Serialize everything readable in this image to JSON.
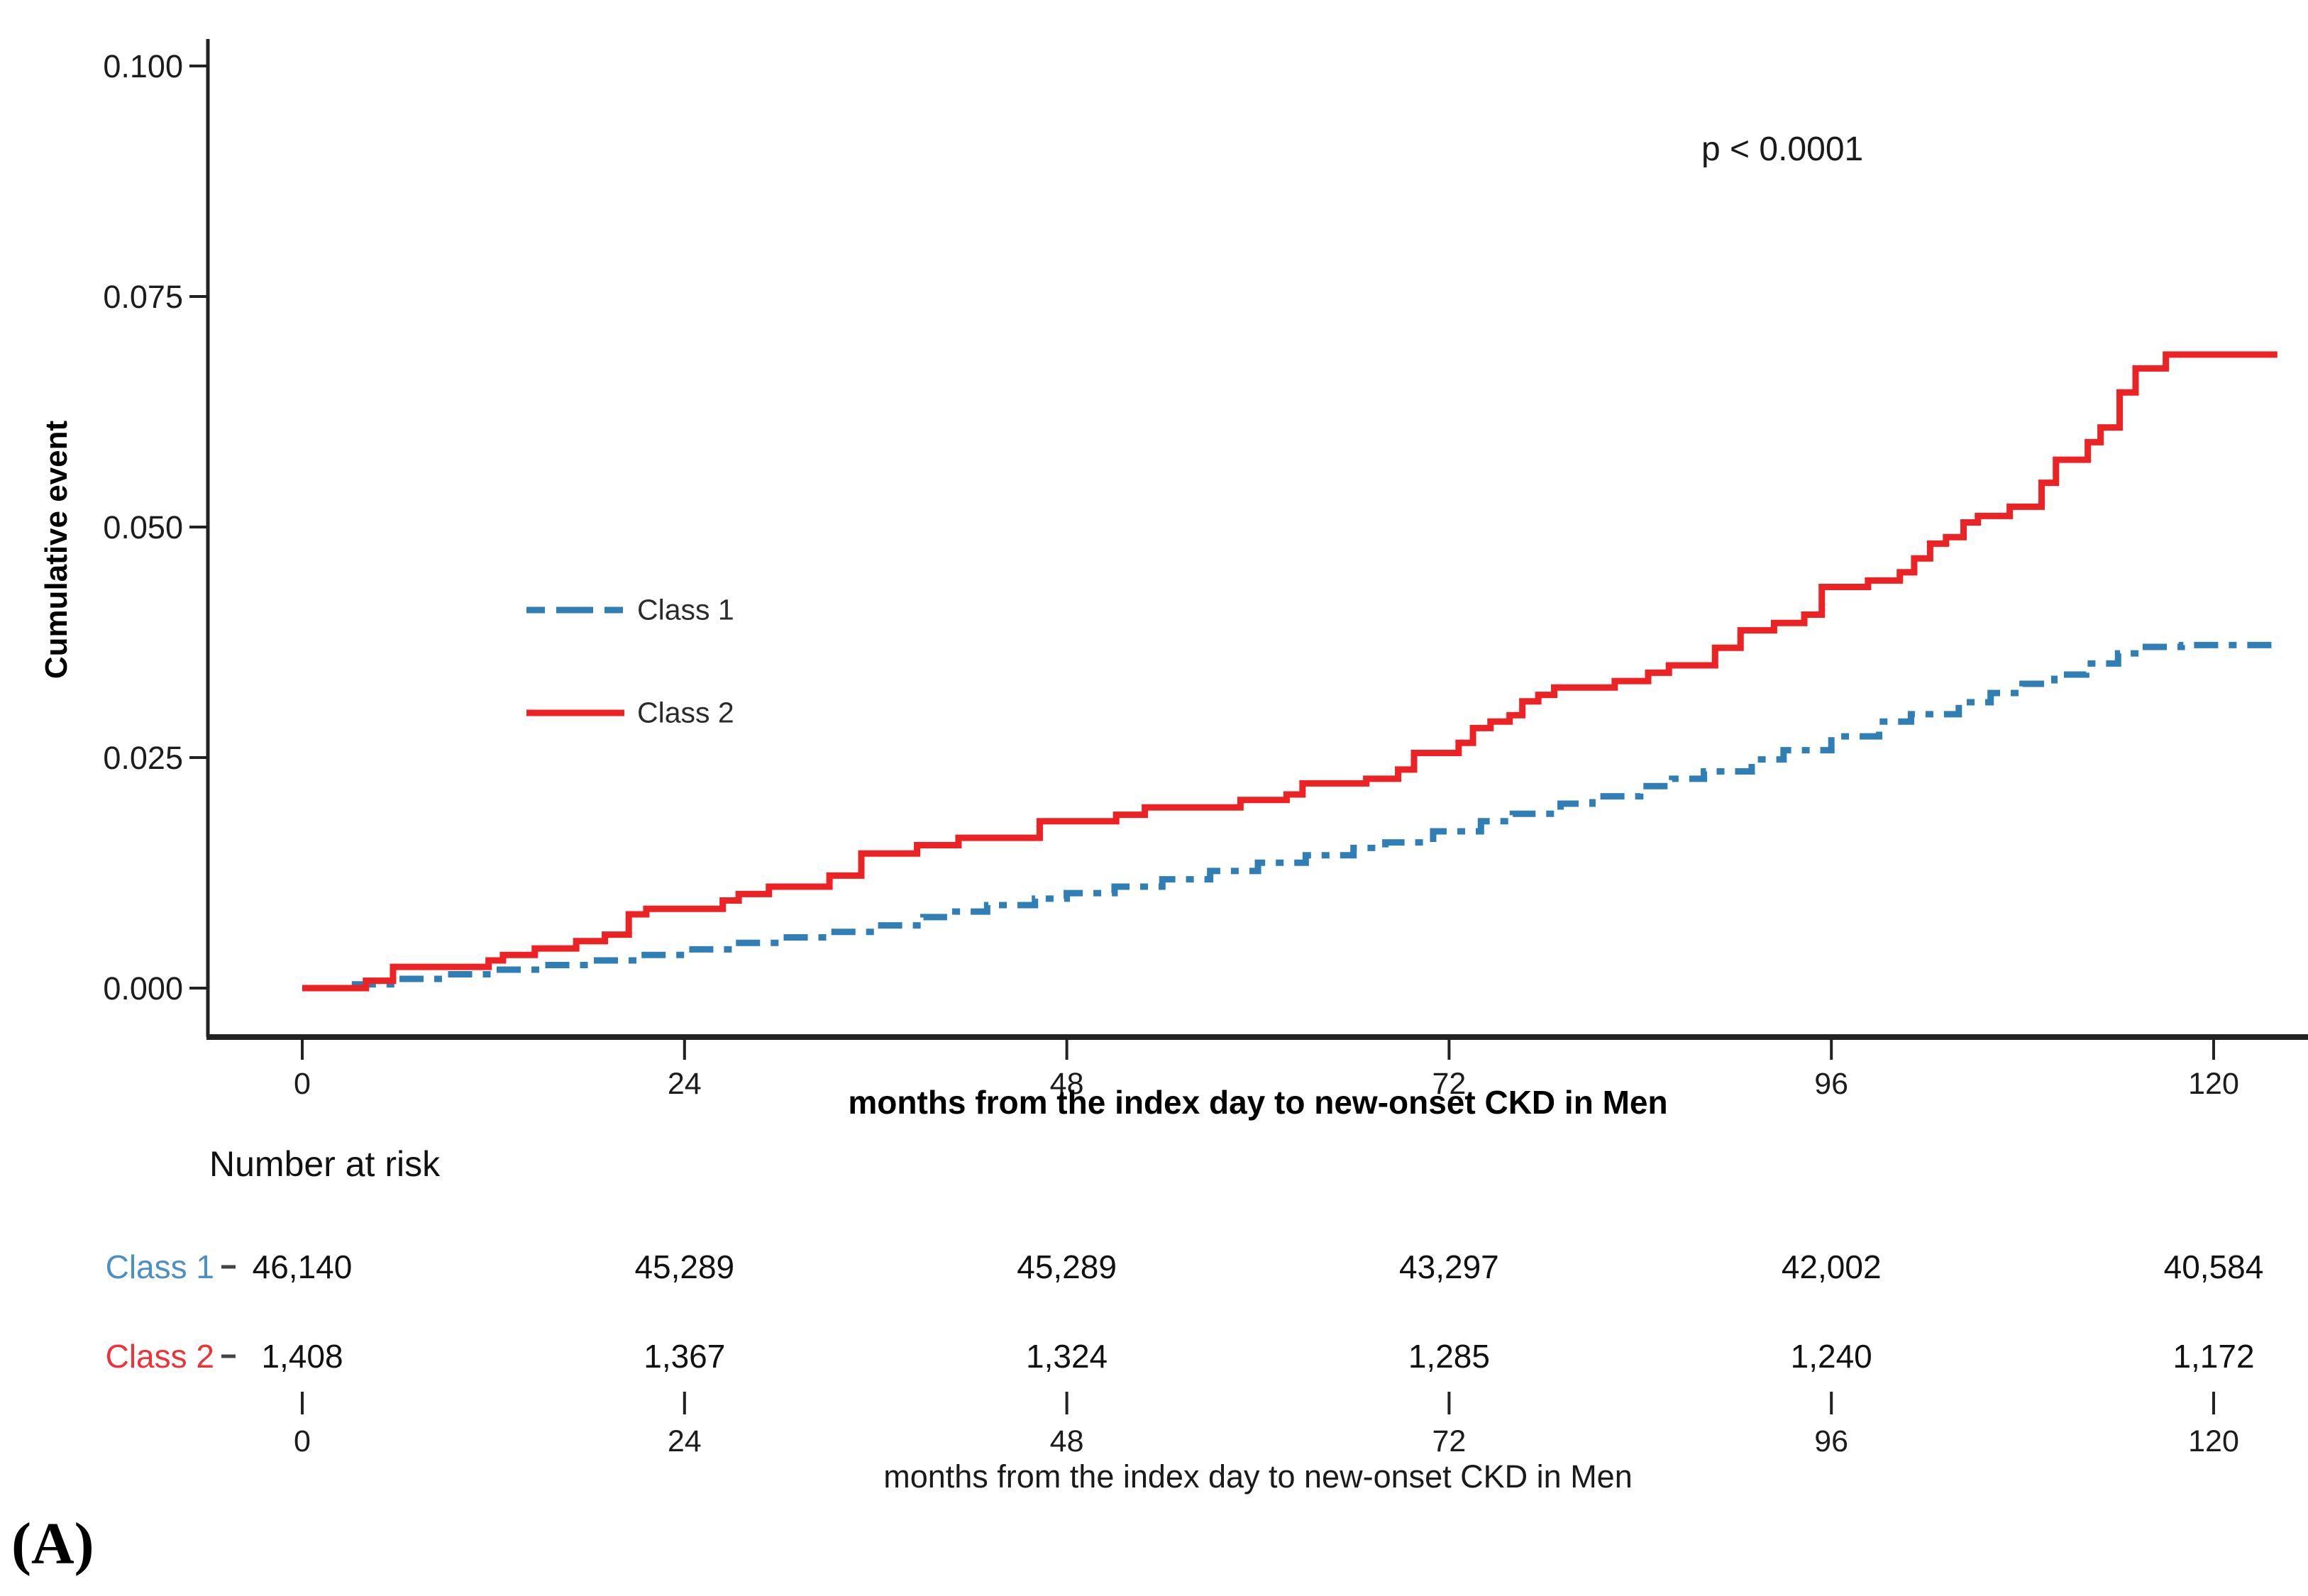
{
  "panel_label": "(A)",
  "p_value": "p < 0.0001",
  "y_axis": {
    "title": "Cumulative event",
    "ticks": [
      "0.000",
      "0.025",
      "0.050",
      "0.075",
      "0.100"
    ],
    "tick_values": [
      0,
      0.025,
      0.05,
      0.075,
      0.1
    ]
  },
  "x_axis": {
    "title": "months from the index day to new-onset CKD in Men",
    "ticks": [
      "0",
      "24",
      "48",
      "72",
      "96",
      "120"
    ],
    "tick_values": [
      0,
      24,
      48,
      72,
      96,
      120
    ]
  },
  "legend": {
    "items": [
      {
        "label": "Class 1",
        "color": "#2F7EB5",
        "style": "dashdot"
      },
      {
        "label": "Class 2",
        "color": "#ED2224",
        "style": "solid"
      }
    ]
  },
  "risk_table": {
    "header": "Number at risk",
    "axis_title": "months from the index day to new-onset CKD in Men",
    "columns": [
      "0",
      "24",
      "48",
      "72",
      "96",
      "120"
    ],
    "column_values": [
      0,
      24,
      48,
      72,
      96,
      120
    ],
    "rows": [
      {
        "label": "Class 1",
        "color": "#4A90C4",
        "values": [
          "46,140",
          "45,289",
          "45,289",
          "43,297",
          "42,002",
          "40,584"
        ]
      },
      {
        "label": "Class 2",
        "color": "#ED3338",
        "values": [
          "1,408",
          "1,367",
          "1,324",
          "1,285",
          "1,240",
          "1,172"
        ]
      }
    ]
  },
  "chart_data": {
    "type": "line",
    "title": "",
    "xlabel": "months from the index day to new-onset CKD in Men",
    "ylabel": "Cumulative event",
    "xlim": [
      -10.5,
      125.5
    ],
    "ylim": [
      0,
      0.105
    ],
    "x_ticks": [
      0,
      24,
      48,
      72,
      96,
      120
    ],
    "y_ticks": [
      0,
      0.025,
      0.05,
      0.075,
      0.1
    ],
    "grid": false,
    "legend_position": "inside-left-middle",
    "annotation": "p < 0.0001",
    "series": [
      {
        "name": "Class 1",
        "color": "#2F7EB5",
        "line_style": "dashdot",
        "step": true,
        "points": [
          [
            0,
            0
          ],
          [
            3,
            0.0004
          ],
          [
            6,
            0.001
          ],
          [
            9,
            0.0015
          ],
          [
            12,
            0.002
          ],
          [
            15,
            0.0025
          ],
          [
            18,
            0.003
          ],
          [
            21,
            0.0036
          ],
          [
            24,
            0.0042
          ],
          [
            27,
            0.0049
          ],
          [
            30,
            0.0055
          ],
          [
            33,
            0.0061
          ],
          [
            36,
            0.0068
          ],
          [
            39,
            0.0077
          ],
          [
            41,
            0.0083
          ],
          [
            43,
            0.009
          ],
          [
            46,
            0.0097
          ],
          [
            48,
            0.0103
          ],
          [
            51,
            0.011
          ],
          [
            54,
            0.0118
          ],
          [
            57,
            0.0127
          ],
          [
            60,
            0.0136
          ],
          [
            63,
            0.0144
          ],
          [
            66,
            0.0152
          ],
          [
            68,
            0.0158
          ],
          [
            71,
            0.017
          ],
          [
            74,
            0.0181
          ],
          [
            76,
            0.0189
          ],
          [
            79,
            0.02
          ],
          [
            81,
            0.0208
          ],
          [
            84,
            0.0219
          ],
          [
            86,
            0.0227
          ],
          [
            88,
            0.0235
          ],
          [
            91,
            0.0248
          ],
          [
            93,
            0.0258
          ],
          [
            96,
            0.0273
          ],
          [
            99,
            0.0289
          ],
          [
            101,
            0.0297
          ],
          [
            104,
            0.031
          ],
          [
            106,
            0.032
          ],
          [
            108,
            0.033
          ],
          [
            110,
            0.034
          ],
          [
            112,
            0.0352
          ],
          [
            114,
            0.0363
          ],
          [
            115.5,
            0.037
          ],
          [
            118,
            0.0372
          ],
          [
            124,
            0.0372
          ]
        ]
      },
      {
        "name": "Class 2",
        "color": "#ED2224",
        "line_style": "solid",
        "step": true,
        "points": [
          [
            0,
            0
          ],
          [
            4,
            0.0008
          ],
          [
            5.7,
            0.0023
          ],
          [
            11.7,
            0.003
          ],
          [
            12.6,
            0.0036
          ],
          [
            14.6,
            0.0043
          ],
          [
            17.2,
            0.0051
          ],
          [
            19,
            0.0058
          ],
          [
            20.5,
            0.008
          ],
          [
            21.6,
            0.0086
          ],
          [
            26.4,
            0.0095
          ],
          [
            27.4,
            0.0102
          ],
          [
            29.3,
            0.011
          ],
          [
            33.1,
            0.0122
          ],
          [
            35.1,
            0.0146
          ],
          [
            38.6,
            0.0155
          ],
          [
            41.2,
            0.0163
          ],
          [
            46.3,
            0.0181
          ],
          [
            51.1,
            0.0188
          ],
          [
            52.9,
            0.0196
          ],
          [
            58.9,
            0.0204
          ],
          [
            61.8,
            0.021
          ],
          [
            62.8,
            0.0222
          ],
          [
            66.8,
            0.0227
          ],
          [
            68.8,
            0.0237
          ],
          [
            69.8,
            0.0255
          ],
          [
            72.6,
            0.0266
          ],
          [
            73.5,
            0.0282
          ],
          [
            74.6,
            0.0289
          ],
          [
            75.8,
            0.0296
          ],
          [
            76.6,
            0.0311
          ],
          [
            77.6,
            0.0318
          ],
          [
            78.6,
            0.0326
          ],
          [
            82.4,
            0.0333
          ],
          [
            84.5,
            0.0342
          ],
          [
            85.8,
            0.035
          ],
          [
            88.7,
            0.0369
          ],
          [
            90.3,
            0.0388
          ],
          [
            92.4,
            0.0396
          ],
          [
            94.3,
            0.0405
          ],
          [
            95.4,
            0.0435
          ],
          [
            98.3,
            0.0442
          ],
          [
            100.3,
            0.0451
          ],
          [
            101.2,
            0.0466
          ],
          [
            102.2,
            0.0482
          ],
          [
            103.2,
            0.0489
          ],
          [
            104.3,
            0.0505
          ],
          [
            105.2,
            0.0512
          ],
          [
            107.2,
            0.0522
          ],
          [
            109.2,
            0.0548
          ],
          [
            110.1,
            0.0573
          ],
          [
            112.1,
            0.0592
          ],
          [
            112.9,
            0.0608
          ],
          [
            114.1,
            0.0646
          ],
          [
            115.1,
            0.0672
          ],
          [
            117,
            0.0687
          ],
          [
            124,
            0.0687
          ]
        ]
      }
    ]
  }
}
